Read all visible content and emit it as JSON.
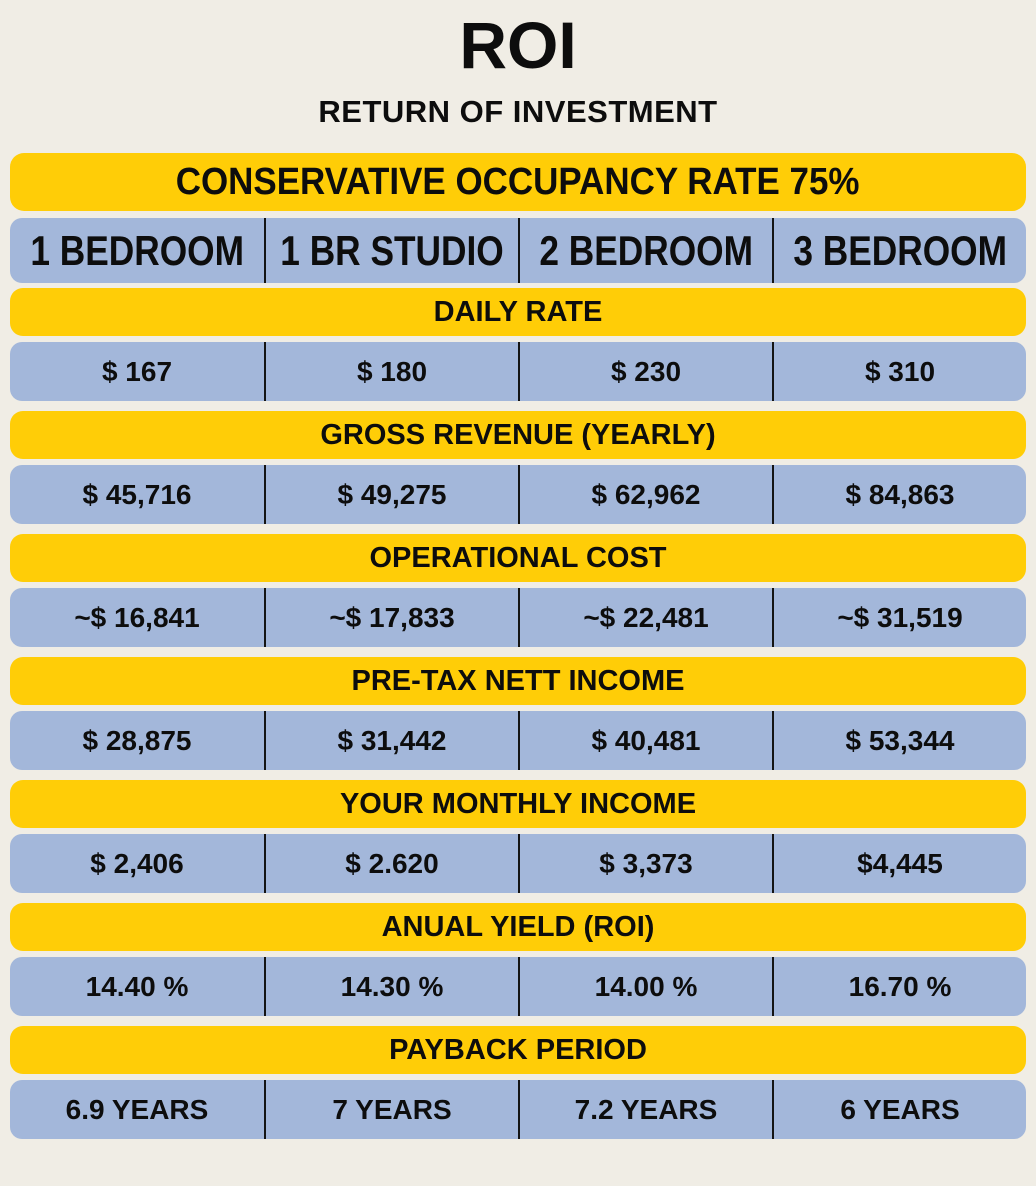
{
  "page": {
    "title": "ROI",
    "subtitle": "RETURN OF INVESTMENT"
  },
  "colors": {
    "background": "#F0EDE5",
    "banner_yellow": "#FFCD07",
    "row_blue": "#A3B7DA",
    "text": "#0D0D0D",
    "divider": "#141414"
  },
  "chart_data": {
    "type": "table",
    "title": "ROI",
    "subtitle": "RETURN OF INVESTMENT",
    "banner": "CONSERVATIVE OCCUPANCY RATE 75%",
    "occupancy_rate_percent": 75,
    "columns": [
      "1 BEDROOM",
      "1 BR STUDIO",
      "2 BEDROOM",
      "3 BEDROOM"
    ],
    "rows": [
      {
        "label": "DAILY RATE",
        "values": [
          "$ 167",
          "$ 180",
          "$ 230",
          "$ 310"
        ],
        "numeric": [
          167,
          180,
          230,
          310
        ]
      },
      {
        "label": "GROSS REVENUE (YEARLY)",
        "values": [
          "$ 45,716",
          "$ 49,275",
          "$ 62,962",
          "$ 84,863"
        ],
        "numeric": [
          45716,
          49275,
          62962,
          84863
        ]
      },
      {
        "label": "OPERATIONAL COST",
        "values": [
          "~$ 16,841",
          "~$ 17,833",
          "~$ 22,481",
          "~$ 31,519"
        ],
        "numeric": [
          16841,
          17833,
          22481,
          31519
        ]
      },
      {
        "label": "PRE-TAX NETT INCOME",
        "values": [
          "$ 28,875",
          "$ 31,442",
          "$ 40,481",
          "$ 53,344"
        ],
        "numeric": [
          28875,
          31442,
          40481,
          53344
        ]
      },
      {
        "label": "YOUR MONTHLY INCOME",
        "values": [
          "$ 2,406",
          "$ 2.620",
          "$ 3,373",
          "$4,445"
        ],
        "numeric": [
          2406,
          2620,
          3373,
          4445
        ]
      },
      {
        "label": "ANUAL YIELD (ROI)",
        "values": [
          "14.40 %",
          "14.30 %",
          "14.00 %",
          "16.70 %"
        ],
        "numeric": [
          14.4,
          14.3,
          14.0,
          16.7
        ]
      },
      {
        "label": "PAYBACK PERIOD",
        "values": [
          "6.9 YEARS",
          "7 YEARS",
          "7.2 YEARS",
          "6 YEARS"
        ],
        "numeric": [
          6.9,
          7,
          7.2,
          6
        ]
      }
    ]
  }
}
